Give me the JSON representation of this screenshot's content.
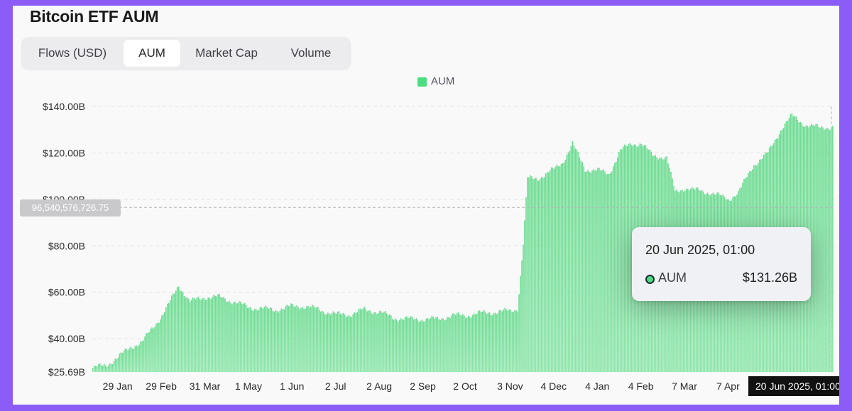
{
  "title": "Bitcoin ETF AUM",
  "tabs": [
    {
      "label": "Flows (USD)",
      "active": false
    },
    {
      "label": "AUM",
      "active": true
    },
    {
      "label": "Market Cap",
      "active": false
    },
    {
      "label": "Volume",
      "active": false
    }
  ],
  "legend": {
    "label": "AUM",
    "color": "#4ade80"
  },
  "crosshair": {
    "value_label": "96,540,576,726.75",
    "value": 96540576726.75,
    "date_label": "20 Jun 2025, 01:00"
  },
  "tooltip": {
    "date": "20 Jun 2025, 01:00",
    "series": "AUM",
    "value": "$131.26B"
  },
  "chart_data": {
    "type": "bar",
    "title": "Bitcoin ETF AUM",
    "series": [
      {
        "name": "AUM",
        "color": "#4ade80"
      }
    ],
    "x_tick_labels": [
      "29 Jan",
      "29 Feb",
      "31 Mar",
      "1 May",
      "1 Jun",
      "2 Jul",
      "2 Aug",
      "2 Sep",
      "2 Oct",
      "3 Nov",
      "4 Dec",
      "4 Jan",
      "4 Feb",
      "7 Mar",
      "7 Apr"
    ],
    "y_tick_labels": [
      "$140.00B",
      "$120.00B",
      "$100.00B",
      "$80.00B",
      "$60.00B",
      "$40.00B",
      "$25.69B"
    ],
    "y_ticks": [
      140,
      120,
      100,
      80,
      60,
      40,
      25.69
    ],
    "ylim": [
      25.69,
      140
    ],
    "y_unit": "B USD",
    "grid": true,
    "legend_position": "top-center",
    "approx_points": [
      [
        "2024-01-11",
        27.5
      ],
      [
        "2024-01-20",
        28.5
      ],
      [
        "2024-01-29",
        32
      ],
      [
        "2024-02-07",
        36.5
      ],
      [
        "2024-02-15",
        38.5
      ],
      [
        "2024-02-29",
        50
      ],
      [
        "2024-03-05",
        55
      ],
      [
        "2024-03-12",
        63
      ],
      [
        "2024-03-20",
        56
      ],
      [
        "2024-03-31",
        58
      ],
      [
        "2024-04-10",
        58
      ],
      [
        "2024-04-20",
        56
      ],
      [
        "2024-05-01",
        53.5
      ],
      [
        "2024-05-10",
        53
      ],
      [
        "2024-05-20",
        52.5
      ],
      [
        "2024-06-01",
        54
      ],
      [
        "2024-06-10",
        54
      ],
      [
        "2024-06-20",
        52.5
      ],
      [
        "2024-07-02",
        50.5
      ],
      [
        "2024-07-12",
        50.5
      ],
      [
        "2024-07-22",
        52.5
      ],
      [
        "2024-08-02",
        51.5
      ],
      [
        "2024-08-12",
        49
      ],
      [
        "2024-08-22",
        48.5
      ],
      [
        "2024-09-02",
        48.5
      ],
      [
        "2024-09-12",
        48.5
      ],
      [
        "2024-09-22",
        50
      ],
      [
        "2024-10-02",
        50
      ],
      [
        "2024-10-12",
        51
      ],
      [
        "2024-10-22",
        51.5
      ],
      [
        "2024-11-03",
        52
      ],
      [
        "2024-11-08",
        53
      ],
      [
        "2024-11-12",
        81
      ],
      [
        "2024-11-15",
        109
      ],
      [
        "2024-11-22",
        109
      ],
      [
        "2024-12-04",
        113
      ],
      [
        "2024-12-10",
        116
      ],
      [
        "2024-12-17",
        124
      ],
      [
        "2024-12-26",
        113
      ],
      [
        "2025-01-04",
        112.5
      ],
      [
        "2025-01-12",
        111
      ],
      [
        "2025-01-20",
        121
      ],
      [
        "2025-01-28",
        124
      ],
      [
        "2025-02-04",
        124
      ],
      [
        "2025-02-12",
        119
      ],
      [
        "2025-02-22",
        118
      ],
      [
        "2025-02-28",
        103
      ],
      [
        "2025-03-07",
        105
      ],
      [
        "2025-03-14",
        104
      ],
      [
        "2025-03-25",
        103
      ],
      [
        "2025-04-07",
        100
      ],
      [
        "2025-04-14",
        103
      ],
      [
        "2025-04-25",
        115
      ],
      [
        "2025-05-05",
        120
      ],
      [
        "2025-05-15",
        131
      ],
      [
        "2025-05-22",
        136
      ],
      [
        "2025-06-01",
        132
      ],
      [
        "2025-06-10",
        131
      ],
      [
        "2025-06-20",
        131.26
      ]
    ]
  }
}
